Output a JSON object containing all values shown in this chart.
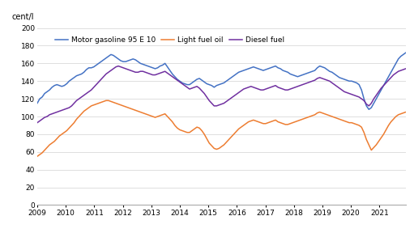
{
  "title": "cent/l",
  "ylim": [
    0,
    200
  ],
  "yticks": [
    0,
    20,
    40,
    60,
    80,
    100,
    120,
    140,
    160,
    180,
    200
  ],
  "colors": {
    "gasoline": "#4472C4",
    "light_fuel": "#ED7D31",
    "diesel": "#7030A0"
  },
  "legend_labels": [
    "Motor gasoline 95 E 10",
    "Light fuel oil",
    "Diesel fuel"
  ],
  "background_color": "#ffffff",
  "grid_color": "#d9d9d9",
  "xmin": 2009.0,
  "xmax": 2021.92,
  "xticks": [
    2009,
    2010,
    2011,
    2012,
    2013,
    2014,
    2015,
    2016,
    2017,
    2018,
    2019,
    2020,
    2021
  ],
  "gasoline": [
    115,
    120,
    122,
    126,
    128,
    130,
    133,
    135,
    136,
    135,
    134,
    135,
    137,
    140,
    142,
    144,
    146,
    147,
    148,
    150,
    153,
    155,
    155,
    156,
    158,
    160,
    162,
    164,
    166,
    168,
    170,
    169,
    167,
    165,
    163,
    162,
    162,
    163,
    164,
    165,
    164,
    162,
    160,
    159,
    158,
    157,
    156,
    155,
    154,
    155,
    157,
    158,
    160,
    156,
    152,
    148,
    145,
    142,
    140,
    138,
    137,
    136,
    136,
    138,
    140,
    142,
    143,
    141,
    139,
    137,
    136,
    135,
    133,
    135,
    136,
    137,
    138,
    140,
    142,
    144,
    146,
    148,
    150,
    151,
    152,
    153,
    154,
    155,
    156,
    155,
    154,
    153,
    152,
    153,
    154,
    155,
    156,
    157,
    155,
    154,
    152,
    151,
    150,
    148,
    147,
    146,
    145,
    146,
    147,
    148,
    149,
    150,
    151,
    152,
    155,
    157,
    156,
    155,
    153,
    151,
    150,
    148,
    146,
    144,
    143,
    142,
    141,
    140,
    140,
    139,
    138,
    136,
    130,
    120,
    112,
    108,
    110,
    115,
    120,
    125,
    130,
    135,
    140,
    145,
    150,
    155,
    160,
    165,
    168,
    170,
    172
  ],
  "light_fuel": [
    55,
    57,
    59,
    62,
    65,
    68,
    70,
    72,
    75,
    78,
    80,
    82,
    84,
    87,
    90,
    93,
    97,
    100,
    103,
    106,
    108,
    110,
    112,
    113,
    114,
    115,
    116,
    117,
    118,
    118,
    117,
    116,
    115,
    114,
    113,
    112,
    111,
    110,
    109,
    108,
    107,
    106,
    105,
    104,
    103,
    102,
    101,
    100,
    99,
    100,
    101,
    102,
    103,
    100,
    97,
    94,
    90,
    87,
    85,
    84,
    83,
    82,
    82,
    84,
    86,
    88,
    87,
    84,
    80,
    75,
    70,
    67,
    64,
    63,
    64,
    66,
    68,
    71,
    74,
    77,
    80,
    83,
    86,
    88,
    90,
    92,
    94,
    95,
    96,
    95,
    94,
    93,
    92,
    92,
    93,
    94,
    95,
    96,
    94,
    93,
    92,
    91,
    91,
    92,
    93,
    94,
    95,
    96,
    97,
    98,
    99,
    100,
    101,
    102,
    104,
    105,
    104,
    103,
    102,
    101,
    100,
    99,
    98,
    97,
    96,
    95,
    94,
    93,
    93,
    92,
    91,
    90,
    88,
    82,
    74,
    68,
    62,
    65,
    68,
    72,
    76,
    80,
    85,
    90,
    94,
    97,
    100,
    102,
    103,
    104,
    105
  ],
  "diesel": [
    93,
    95,
    97,
    99,
    100,
    102,
    103,
    104,
    105,
    106,
    107,
    108,
    109,
    110,
    112,
    115,
    118,
    120,
    122,
    124,
    126,
    128,
    130,
    133,
    136,
    139,
    142,
    145,
    148,
    150,
    152,
    154,
    156,
    157,
    156,
    155,
    154,
    153,
    152,
    151,
    150,
    150,
    151,
    151,
    150,
    149,
    148,
    147,
    147,
    148,
    149,
    150,
    151,
    149,
    147,
    145,
    143,
    141,
    139,
    137,
    135,
    133,
    131,
    132,
    133,
    134,
    132,
    129,
    126,
    122,
    118,
    115,
    112,
    112,
    113,
    114,
    115,
    117,
    119,
    121,
    123,
    125,
    127,
    129,
    131,
    132,
    133,
    134,
    133,
    132,
    131,
    130,
    130,
    131,
    132,
    133,
    134,
    135,
    133,
    132,
    131,
    130,
    130,
    131,
    132,
    133,
    134,
    135,
    136,
    137,
    138,
    139,
    140,
    141,
    143,
    144,
    143,
    142,
    141,
    140,
    138,
    136,
    134,
    132,
    130,
    128,
    127,
    126,
    125,
    124,
    123,
    122,
    120,
    118,
    114,
    112,
    115,
    120,
    124,
    128,
    132,
    135,
    138,
    141,
    144,
    147,
    149,
    151,
    152,
    153,
    154
  ]
}
